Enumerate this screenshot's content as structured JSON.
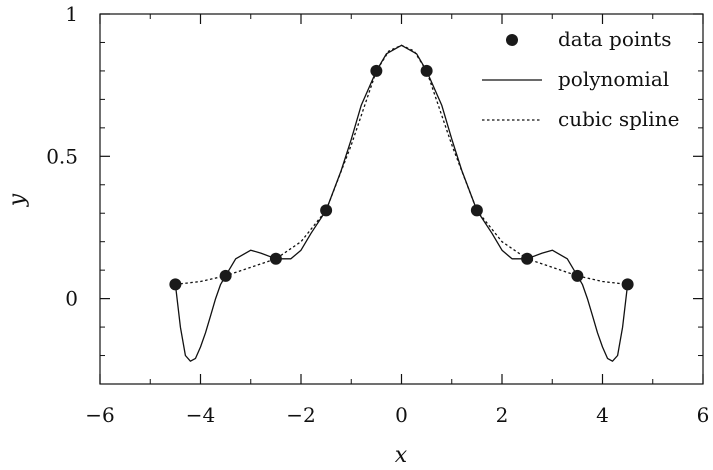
{
  "chart_data": {
    "type": "scatter",
    "title": "",
    "xlabel": "x",
    "ylabel": "y",
    "xlim": [
      -6,
      6
    ],
    "ylim": [
      -0.3,
      1.0
    ],
    "x_ticks": [
      -6,
      -4,
      -2,
      0,
      2,
      4,
      6
    ],
    "x_tick_labels": [
      "−6",
      "−4",
      "−2",
      "0",
      "2",
      "4",
      "6"
    ],
    "y_ticks": [
      0,
      0.5,
      1
    ],
    "y_tick_labels": [
      "0",
      "0.5",
      "1"
    ],
    "x_minor_step": 1,
    "y_minor_step": 0.1,
    "grid": false,
    "legend_position": "top-right",
    "series": [
      {
        "name": "data points",
        "kind": "markers",
        "x": [
          -4.5,
          -3.5,
          -2.5,
          -1.5,
          -0.5,
          0.5,
          1.5,
          2.5,
          3.5,
          4.5
        ],
        "y": [
          0.05,
          0.08,
          0.14,
          0.31,
          0.8,
          0.8,
          0.31,
          0.14,
          0.08,
          0.05
        ]
      },
      {
        "name": "polynomial",
        "kind": "line",
        "style": "solid",
        "x": [
          -4.5,
          -4.4,
          -4.3,
          -4.2,
          -4.1,
          -4.0,
          -3.9,
          -3.8,
          -3.7,
          -3.6,
          -3.5,
          -3.3,
          -3.0,
          -2.8,
          -2.5,
          -2.2,
          -2.0,
          -1.8,
          -1.5,
          -1.2,
          -1.0,
          -0.8,
          -0.5,
          -0.3,
          0.0,
          0.3,
          0.5,
          0.8,
          1.0,
          1.2,
          1.5,
          1.8,
          2.0,
          2.2,
          2.5,
          2.8,
          3.0,
          3.3,
          3.5,
          3.6,
          3.7,
          3.8,
          3.9,
          4.0,
          4.1,
          4.2,
          4.3,
          4.4,
          4.5
        ],
        "y": [
          0.05,
          -0.1,
          -0.2,
          -0.22,
          -0.21,
          -0.17,
          -0.12,
          -0.06,
          0.0,
          0.05,
          0.08,
          0.14,
          0.17,
          0.16,
          0.14,
          0.14,
          0.17,
          0.23,
          0.31,
          0.45,
          0.56,
          0.68,
          0.8,
          0.86,
          0.89,
          0.86,
          0.8,
          0.68,
          0.56,
          0.45,
          0.31,
          0.23,
          0.17,
          0.14,
          0.14,
          0.16,
          0.17,
          0.14,
          0.08,
          0.05,
          0.0,
          -0.06,
          -0.12,
          -0.17,
          -0.21,
          -0.22,
          -0.2,
          -0.1,
          0.05
        ]
      },
      {
        "name": "cubic spline",
        "kind": "line",
        "style": "dotted",
        "x": [
          -4.5,
          -4.0,
          -3.5,
          -3.0,
          -2.5,
          -2.0,
          -1.5,
          -1.0,
          -0.5,
          -0.25,
          0.0,
          0.25,
          0.5,
          1.0,
          1.5,
          2.0,
          2.5,
          3.0,
          3.5,
          4.0,
          4.5
        ],
        "y": [
          0.05,
          0.06,
          0.08,
          0.11,
          0.14,
          0.2,
          0.31,
          0.54,
          0.8,
          0.87,
          0.89,
          0.87,
          0.8,
          0.54,
          0.31,
          0.2,
          0.14,
          0.11,
          0.08,
          0.06,
          0.05
        ]
      }
    ]
  }
}
